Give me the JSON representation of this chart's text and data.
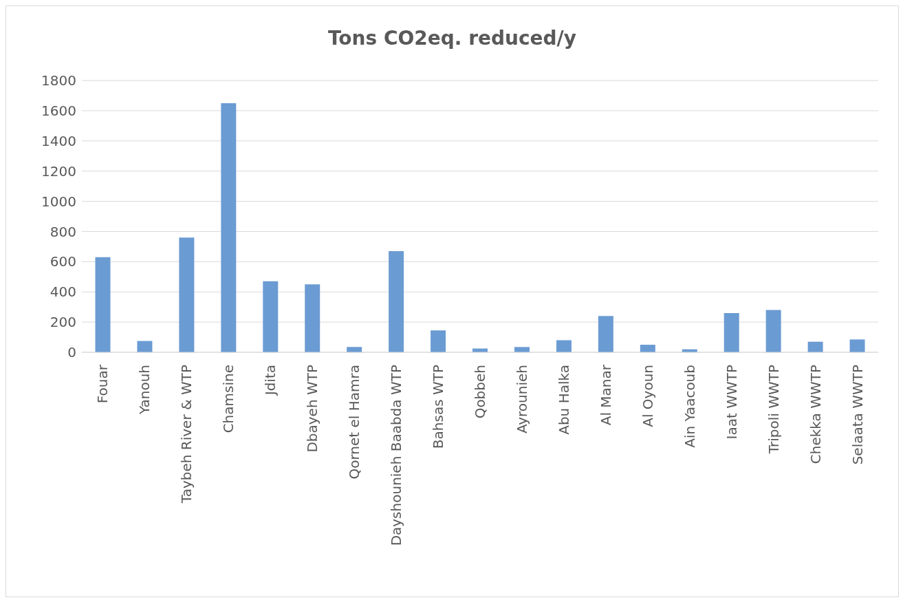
{
  "chart_data": {
    "type": "bar",
    "title": "Tons CO2eq. reduced/y",
    "categories": [
      "Fouar",
      "Yanouh",
      "Taybeh River & WTP",
      "Chamsine",
      "Jdita",
      "Dbayeh WTP",
      "Qornet el Hamra",
      "Dayshounieh Baabda WTP",
      "Bahsas WTP",
      "Qobbeh",
      "Ayrounieh",
      "Abu Halka",
      "Al Manar",
      "Al Oyoun",
      "Ain Yaacoub",
      "Iaat WWTP",
      "Tripoli WWTP",
      "Chekka WWTP",
      "Selaata WWTP"
    ],
    "values": [
      630,
      75,
      760,
      1650,
      470,
      450,
      35,
      670,
      145,
      25,
      35,
      80,
      240,
      50,
      20,
      260,
      280,
      70,
      85
    ],
    "color": "#6b9bd3",
    "ylim": [
      0,
      1800
    ],
    "yticks": [
      0,
      200,
      400,
      600,
      800,
      1000,
      1200,
      1400,
      1600,
      1800
    ],
    "grid": "y"
  }
}
